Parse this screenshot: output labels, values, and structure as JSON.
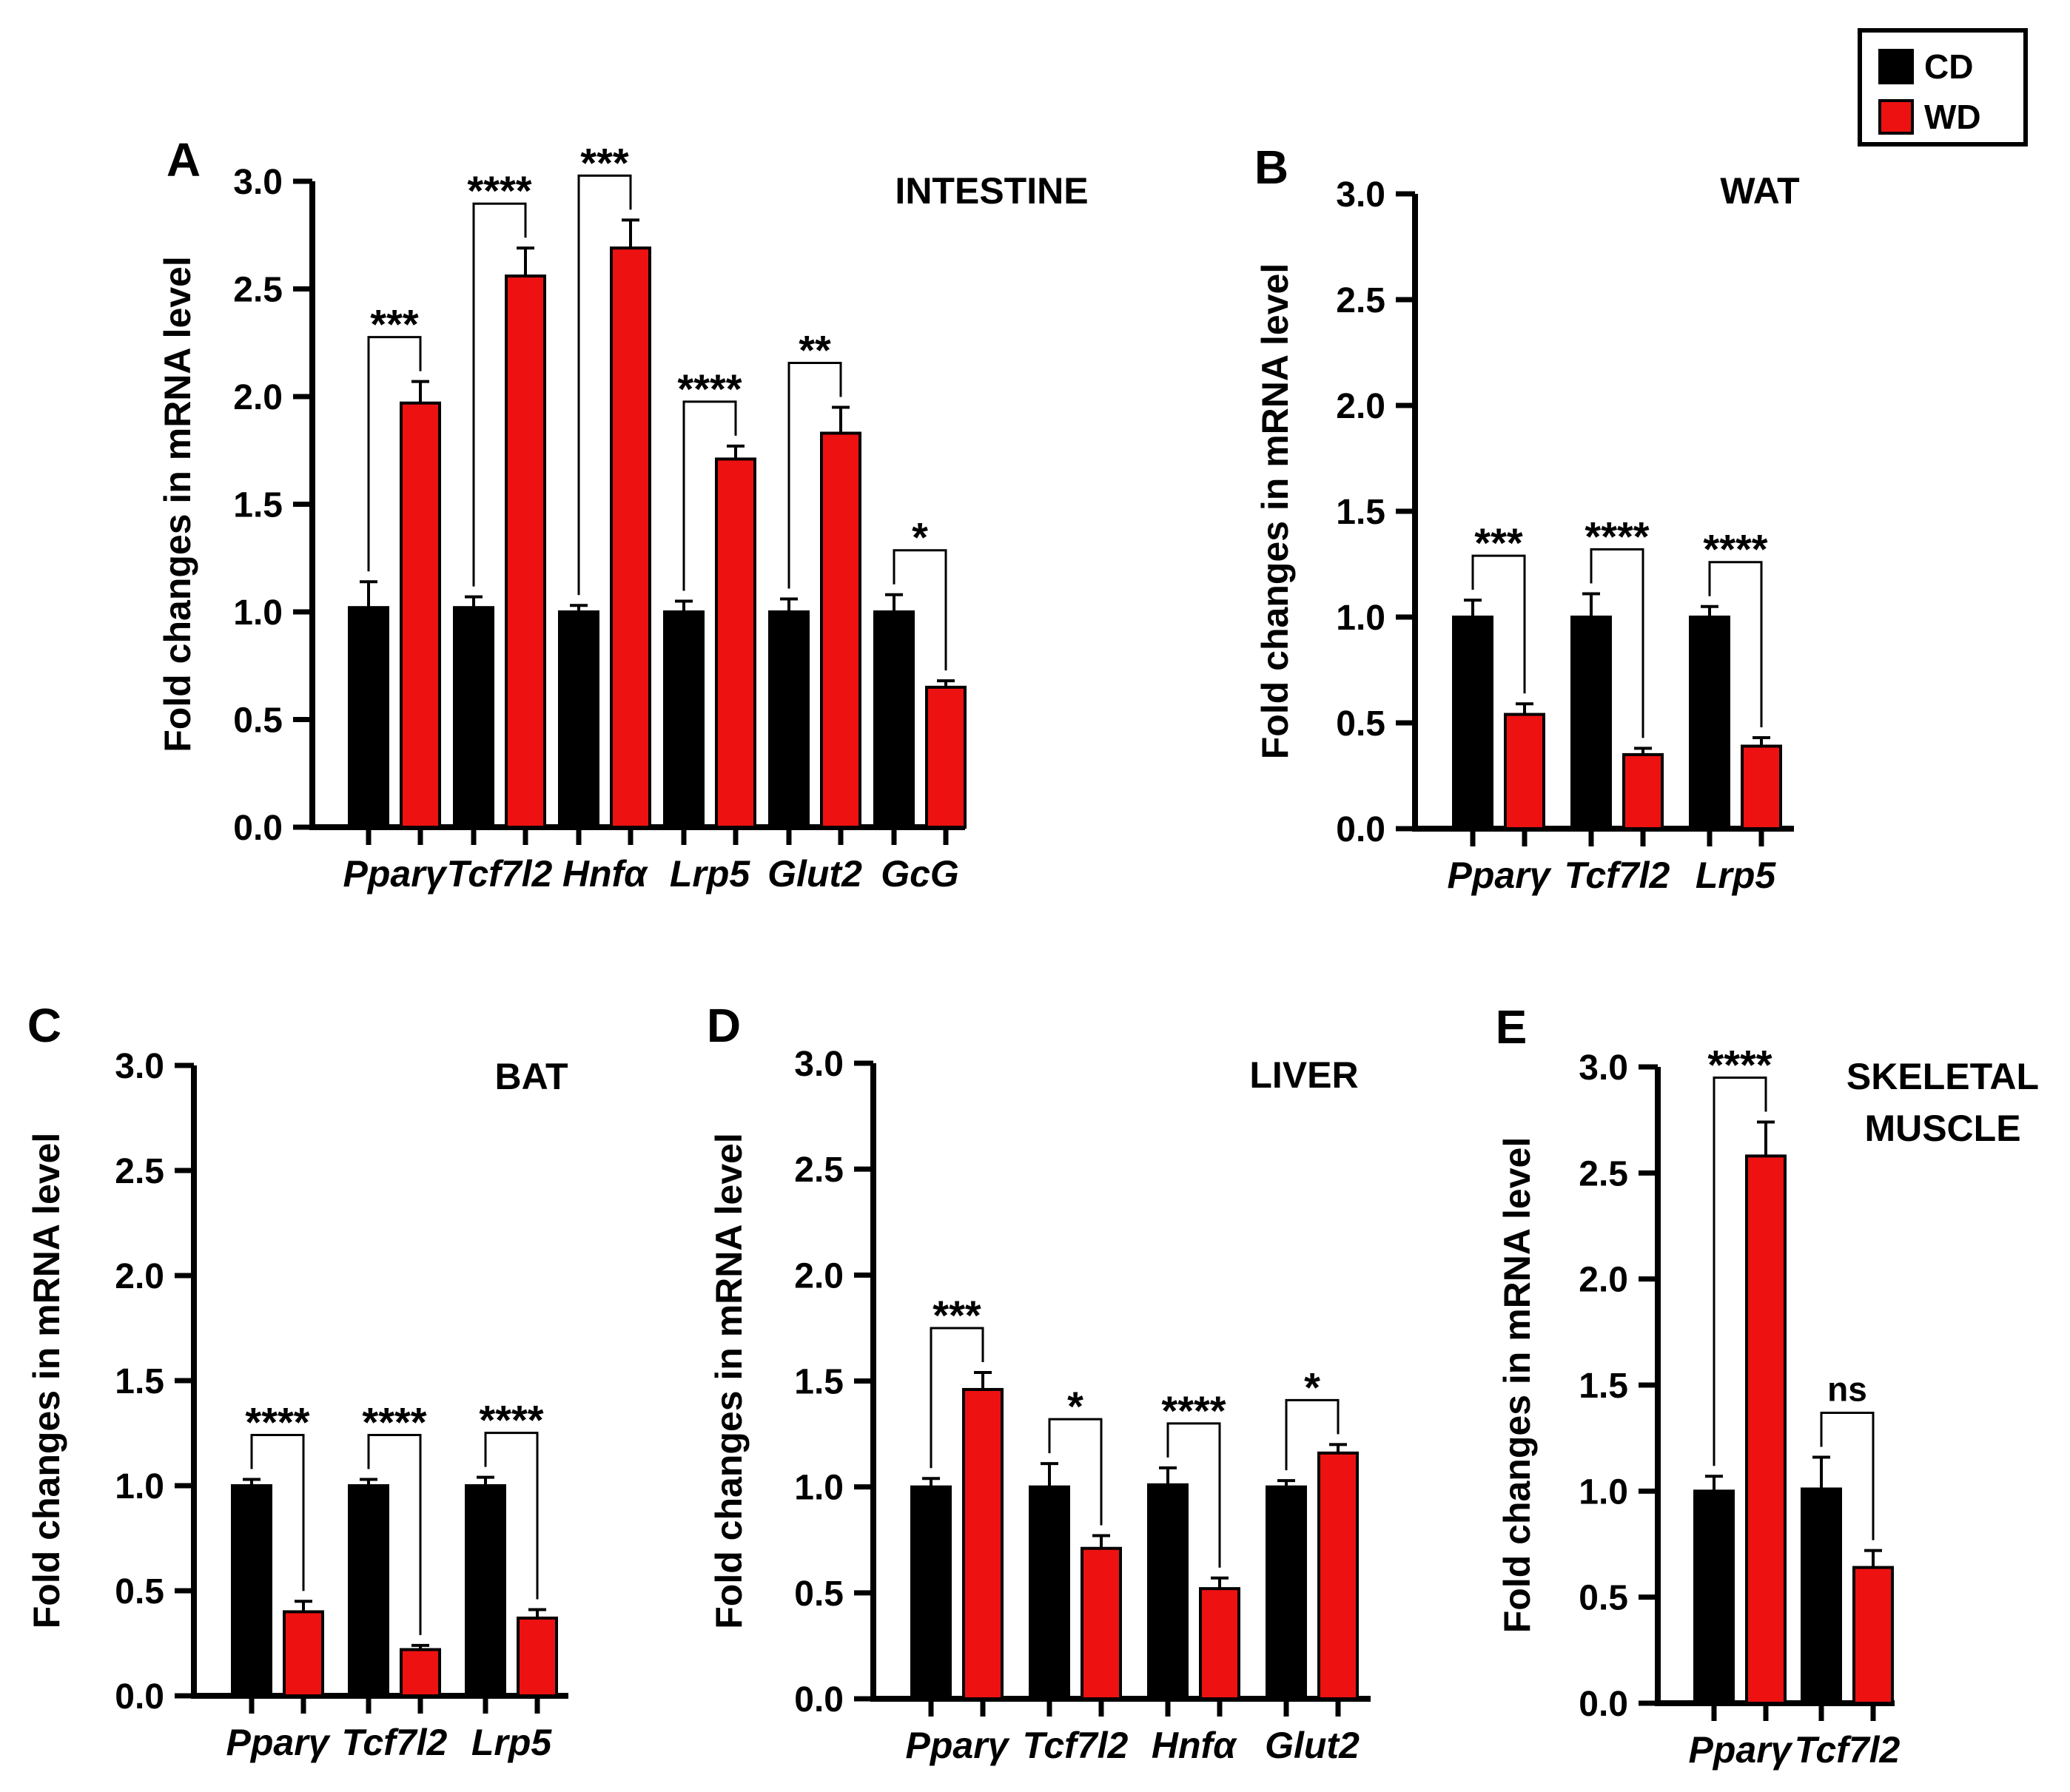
{
  "legend": {
    "items": [
      {
        "label": "CD",
        "color": "#000000"
      },
      {
        "label": "WD",
        "color": "#ee1111"
      }
    ]
  },
  "chart_data": [
    {
      "type": "bar",
      "panel": "A",
      "title": "INTESTINE",
      "ylabel": "Fold changes in mRNA level",
      "ylim": [
        0,
        3.0
      ],
      "yticks": [
        "0.0",
        "0.5",
        "1.0",
        "1.5",
        "2.0",
        "2.5",
        "3.0"
      ],
      "categories": [
        "Pparγ",
        "Tcf7l2",
        "Hnfα",
        "Lrp5",
        "Glut2",
        "GcG"
      ],
      "series": [
        {
          "name": "CD",
          "values": [
            1.02,
            1.02,
            1.0,
            1.0,
            1.0,
            1.0
          ],
          "errors": [
            0.12,
            0.05,
            0.03,
            0.05,
            0.06,
            0.08
          ]
        },
        {
          "name": "WD",
          "values": [
            1.97,
            2.56,
            2.69,
            1.71,
            1.83,
            0.65
          ],
          "errors": [
            0.1,
            0.13,
            0.13,
            0.06,
            0.12,
            0.03
          ]
        }
      ],
      "significance": [
        "***",
        "****",
        "***",
        "****",
        "**",
        "*"
      ]
    },
    {
      "type": "bar",
      "panel": "B",
      "title": "WAT",
      "ylabel": "Fold changes in mRNA level",
      "ylim": [
        0,
        3.0
      ],
      "yticks": [
        "0.0",
        "0.5",
        "1.0",
        "1.5",
        "2.0",
        "2.5",
        "3.0"
      ],
      "categories": [
        "Pparγ",
        "Tcf7l2",
        "Lrp5"
      ],
      "series": [
        {
          "name": "CD",
          "values": [
            1.0,
            1.0,
            1.0
          ],
          "errors": [
            0.08,
            0.11,
            0.05
          ]
        },
        {
          "name": "WD",
          "values": [
            0.54,
            0.35,
            0.39
          ],
          "errors": [
            0.05,
            0.03,
            0.04
          ]
        }
      ],
      "significance": [
        "***",
        "****",
        "****"
      ]
    },
    {
      "type": "bar",
      "panel": "C",
      "title": "BAT",
      "ylabel": "Fold changes in mRNA level",
      "ylim": [
        0,
        3.0
      ],
      "yticks": [
        "0.0",
        "0.5",
        "1.0",
        "1.5",
        "2.0",
        "2.5",
        "3.0"
      ],
      "categories": [
        "Pparγ",
        "Tcf7l2",
        "Lrp5"
      ],
      "series": [
        {
          "name": "CD",
          "values": [
            1.0,
            1.0,
            1.0
          ],
          "errors": [
            0.03,
            0.03,
            0.04
          ]
        },
        {
          "name": "WD",
          "values": [
            0.4,
            0.22,
            0.37
          ],
          "errors": [
            0.05,
            0.02,
            0.04
          ]
        }
      ],
      "significance": [
        "****",
        "****",
        "****"
      ]
    },
    {
      "type": "bar",
      "panel": "D",
      "title": "LIVER",
      "ylabel": "Fold changes in mRNA level",
      "ylim": [
        0,
        3.0
      ],
      "yticks": [
        "0.0",
        "0.5",
        "1.0",
        "1.5",
        "2.0",
        "2.5",
        "3.0"
      ],
      "categories": [
        "Pparγ",
        "Tcf7l2",
        "Hnfα",
        "Glut2"
      ],
      "series": [
        {
          "name": "CD",
          "values": [
            1.0,
            1.0,
            1.01,
            1.0
          ],
          "errors": [
            0.04,
            0.11,
            0.08,
            0.03
          ]
        },
        {
          "name": "WD",
          "values": [
            1.46,
            0.71,
            0.52,
            1.16
          ],
          "errors": [
            0.08,
            0.06,
            0.05,
            0.04
          ]
        }
      ],
      "significance": [
        "***",
        "*",
        "****",
        "*"
      ]
    },
    {
      "type": "bar",
      "panel": "E",
      "title": "SKELETAL MUSCLE",
      "title_lines": [
        "SKELETAL",
        "MUSCLE"
      ],
      "ylabel": "Fold changes in mRNA level",
      "ylim": [
        0,
        3.0
      ],
      "yticks": [
        "0.0",
        "0.5",
        "1.0",
        "1.5",
        "2.0",
        "2.5",
        "3.0"
      ],
      "categories": [
        "Pparγ",
        "Tcf7l2"
      ],
      "series": [
        {
          "name": "CD",
          "values": [
            1.0,
            1.01
          ],
          "errors": [
            0.07,
            0.15
          ]
        },
        {
          "name": "WD",
          "values": [
            2.58,
            0.64
          ],
          "errors": [
            0.16,
            0.08
          ]
        }
      ],
      "significance": [
        "****",
        "ns"
      ]
    }
  ]
}
